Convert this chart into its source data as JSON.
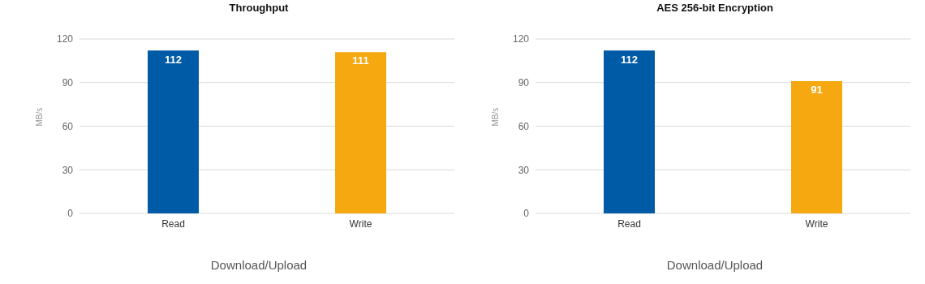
{
  "chart_data": [
    {
      "type": "bar",
      "title": "Throughput",
      "xlabel": "Download/Upload",
      "ylabel": "MB/s",
      "categories": [
        "Read",
        "Write"
      ],
      "values": [
        112,
        111
      ],
      "colors": [
        "#005ba6",
        "#f5a80f"
      ],
      "ylim": [
        0,
        120
      ],
      "yticks": [
        0,
        30,
        60,
        90,
        120
      ],
      "grid": "y",
      "data_labels": true
    },
    {
      "type": "bar",
      "title": "AES 256-bit Encryption",
      "xlabel": "Download/Upload",
      "ylabel": "MB/s",
      "categories": [
        "Read",
        "Write"
      ],
      "values": [
        112,
        91
      ],
      "colors": [
        "#005ba6",
        "#f5a80f"
      ],
      "ylim": [
        0,
        120
      ],
      "yticks": [
        0,
        30,
        60,
        90,
        120
      ],
      "grid": "y",
      "data_labels": true
    }
  ]
}
